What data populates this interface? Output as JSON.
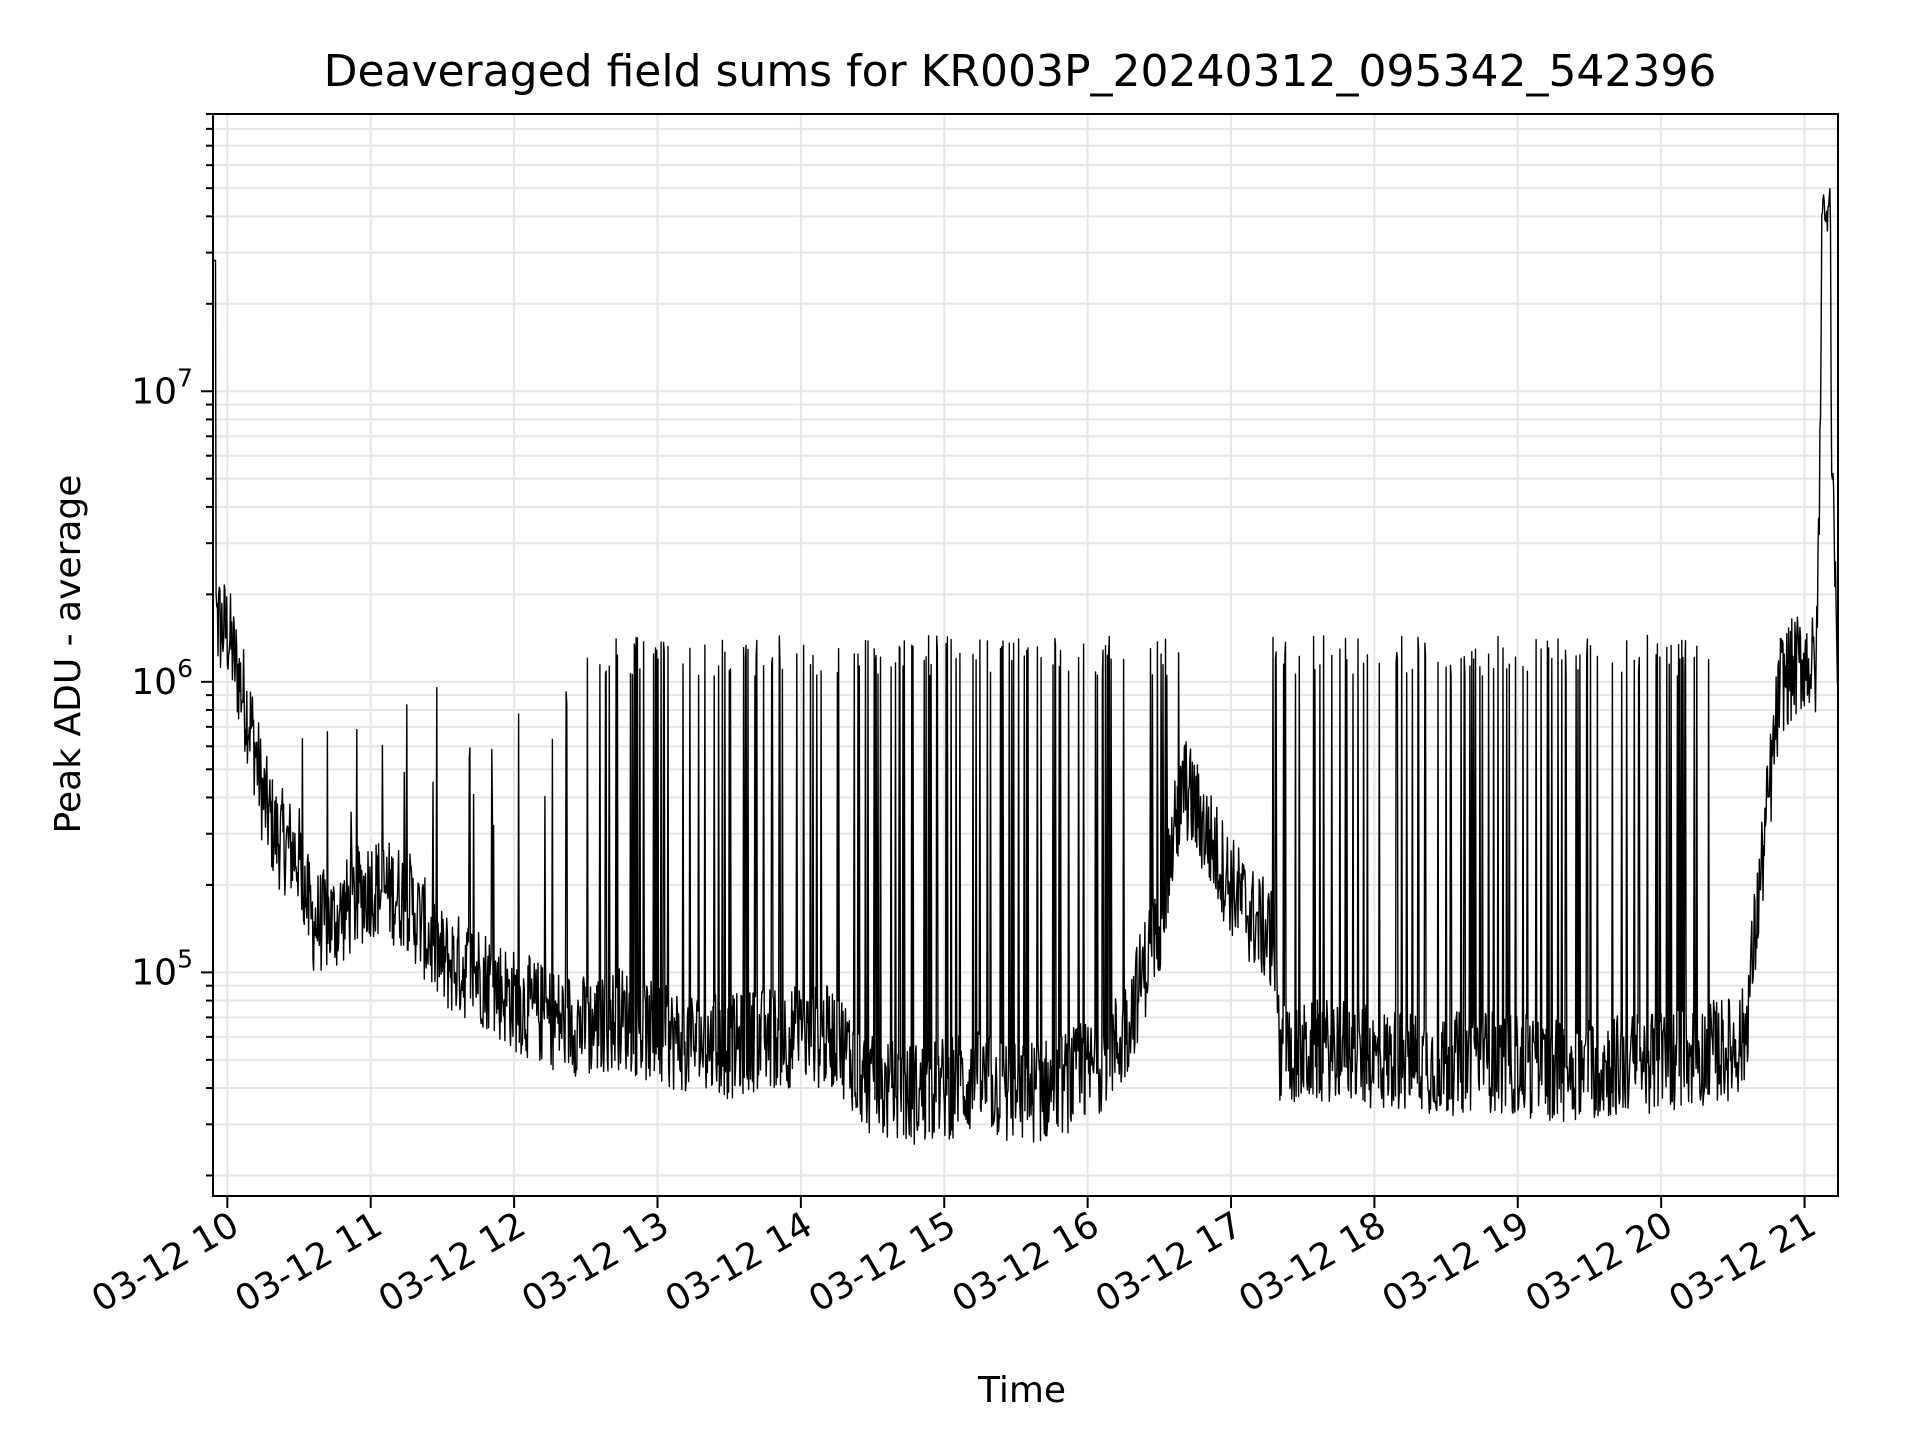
{
  "chart_data": {
    "type": "line",
    "title": "Deaveraged field sums for KR003P_20240312_095342_542396",
    "xlabel": "Time",
    "ylabel": "Peak ADU - average",
    "x_tick_labels": [
      "03-12 10",
      "03-12 11",
      "03-12 12",
      "03-12 13",
      "03-12 14",
      "03-12 15",
      "03-12 16",
      "03-12 17",
      "03-12 18",
      "03-12 19",
      "03-12 20",
      "03-12 21"
    ],
    "y_scale": "log",
    "y_tick_labels": [
      {
        "base": "10",
        "exp": "5"
      },
      {
        "base": "10",
        "exp": "6"
      },
      {
        "base": "10",
        "exp": "7"
      }
    ],
    "xlim": [
      "2024-03-12 09:54",
      "2024-03-12 21:14"
    ],
    "ylim": [
      17000,
      90000000
    ],
    "grid": true,
    "line_color": "#000000",
    "series": [
      {
        "x": [
          "2024-03-12 09:54",
          "2024-03-12 10:00",
          "2024-03-12 10:10",
          "2024-03-12 10:15",
          "2024-03-12 10:20",
          "2024-03-12 10:30",
          "2024-03-12 10:35",
          "2024-03-12 10:45",
          "2024-03-12 11:00",
          "2024-03-12 11:15",
          "2024-03-12 11:30",
          "2024-03-12 11:45",
          "2024-03-12 12:00",
          "2024-03-12 12:15",
          "2024-03-12 12:30",
          "2024-03-12 12:45",
          "2024-03-12 13:00",
          "2024-03-12 13:15",
          "2024-03-12 13:30",
          "2024-03-12 13:45",
          "2024-03-12 14:00",
          "2024-03-12 14:15",
          "2024-03-12 14:30",
          "2024-03-12 14:45",
          "2024-03-12 15:00",
          "2024-03-12 15:15",
          "2024-03-12 15:30",
          "2024-03-12 15:45",
          "2024-03-12 16:00",
          "2024-03-12 16:15",
          "2024-03-12 16:30",
          "2024-03-12 16:40",
          "2024-03-12 16:50",
          "2024-03-12 17:00",
          "2024-03-12 17:10",
          "2024-03-12 17:18",
          "2024-03-12 17:20",
          "2024-03-12 17:30",
          "2024-03-12 17:45",
          "2024-03-12 18:00",
          "2024-03-12 18:15",
          "2024-03-12 18:30",
          "2024-03-12 18:45",
          "2024-03-12 19:00",
          "2024-03-12 19:15",
          "2024-03-12 19:30",
          "2024-03-12 19:45",
          "2024-03-12 20:00",
          "2024-03-12 20:15",
          "2024-03-12 20:30",
          "2024-03-12 20:35",
          "2024-03-12 20:45",
          "2024-03-12 20:50",
          "2024-03-12 21:00",
          "2024-03-12 21:05",
          "2024-03-12 21:08",
          "2024-03-12 21:10",
          "2024-03-12 21:14"
        ],
        "y": [
          1600000,
          1500000,
          700000,
          400000,
          300000,
          250000,
          150000,
          150000,
          200000,
          180000,
          110000,
          100000,
          80000,
          70000,
          65000,
          70000,
          60000,
          58000,
          55000,
          60000,
          60000,
          60000,
          40000,
          38000,
          40000,
          42000,
          38000,
          40000,
          45000,
          60000,
          150000,
          450000,
          300000,
          200000,
          150000,
          130000,
          55000,
          52000,
          55000,
          50000,
          50000,
          48000,
          50000,
          48000,
          46000,
          47000,
          48000,
          50000,
          52000,
          55000,
          60000,
          400000,
          1000000,
          1200000,
          1100000,
          40000000,
          20000000,
          1000000
        ]
      }
    ]
  }
}
